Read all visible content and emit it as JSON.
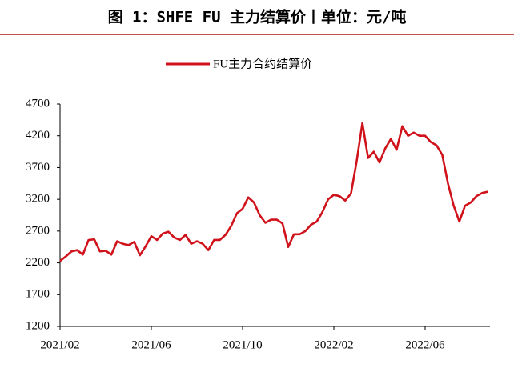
{
  "chart_data": {
    "type": "line",
    "title": "图 1：SHFE FU 主力结算价丨单位：元/吨",
    "categories": [
      "2021/02",
      null,
      null,
      null,
      null,
      null,
      null,
      null,
      null,
      null,
      null,
      null,
      null,
      null,
      null,
      null,
      "2021/06",
      null,
      null,
      null,
      null,
      null,
      null,
      null,
      null,
      null,
      null,
      null,
      null,
      null,
      null,
      null,
      "2021/10",
      null,
      null,
      null,
      null,
      null,
      null,
      null,
      null,
      null,
      null,
      null,
      null,
      null,
      null,
      null,
      "2022/02",
      null,
      null,
      null,
      null,
      null,
      null,
      null,
      null,
      null,
      null,
      null,
      null,
      null,
      null,
      null,
      "2022/06",
      null,
      null,
      null,
      null,
      null,
      null,
      null,
      null,
      null,
      null,
      null
    ],
    "series": [
      {
        "name": "FU主力合约结算价",
        "color": "#d0121b",
        "values": [
          2230,
          2300,
          2380,
          2400,
          2330,
          2560,
          2570,
          2380,
          2390,
          2330,
          2540,
          2500,
          2480,
          2530,
          2320,
          2460,
          2620,
          2560,
          2660,
          2690,
          2600,
          2560,
          2640,
          2500,
          2540,
          2500,
          2400,
          2560,
          2560,
          2640,
          2780,
          2980,
          3050,
          3230,
          3150,
          2950,
          2830,
          2880,
          2880,
          2820,
          2450,
          2650,
          2650,
          2700,
          2800,
          2850,
          3000,
          3200,
          3270,
          3250,
          3180,
          3290,
          3800,
          4400,
          3850,
          3950,
          3780,
          4000,
          4150,
          3980,
          4350,
          4200,
          4250,
          4200,
          4200,
          4100,
          4050,
          3900,
          3450,
          3100,
          2850,
          3100,
          3150,
          3250,
          3300,
          3320
        ]
      }
    ],
    "ylim": [
      1200,
      4700
    ],
    "yticks": [
      1200,
      1700,
      2200,
      2700,
      3200,
      3700,
      4200,
      4700
    ],
    "grid": false,
    "legend": "top"
  }
}
